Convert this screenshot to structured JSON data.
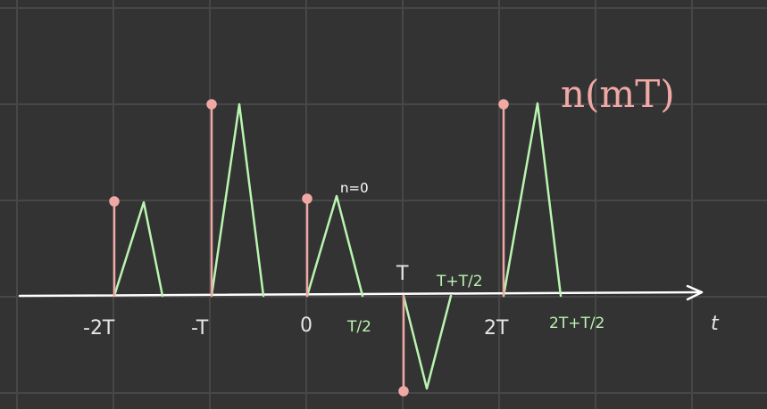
{
  "diagram": {
    "colors": {
      "background": "#333333",
      "grid": "#474747",
      "axis": "#ffffff",
      "samples": "#f0a8a5",
      "pulses": "#b9f5b0"
    },
    "axis_label": "t",
    "function_label": "n(mT)",
    "annotation": "n=0",
    "tick_labels": {
      "minus_2T": "-2T",
      "minus_T": "-T",
      "zero": "0",
      "half_T": "T/2",
      "T": "T",
      "T_plus_half": "T+T/2",
      "two_T": "2T",
      "two_T_plus_half": "2T+T/2"
    },
    "samples": [
      {
        "t": "-2T",
        "value": 1
      },
      {
        "t": "-T",
        "value": 2
      },
      {
        "t": "0",
        "value": 1
      },
      {
        "t": "T",
        "value": -1
      },
      {
        "t": "2T",
        "value": 2
      }
    ]
  }
}
